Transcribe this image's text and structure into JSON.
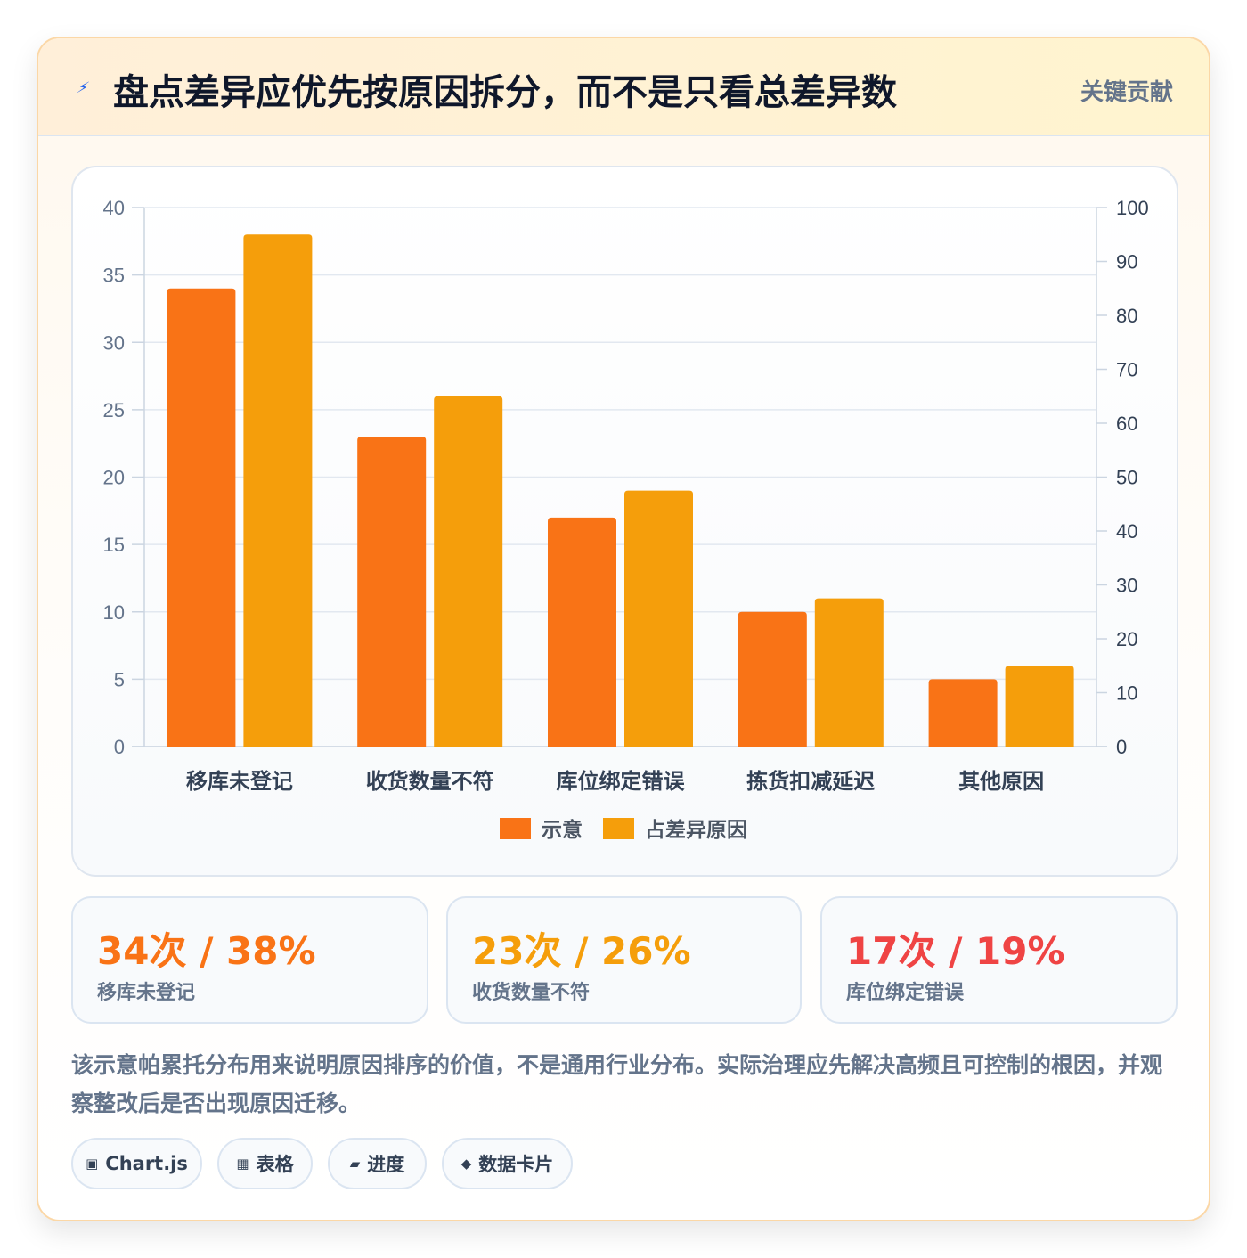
{
  "header": {
    "icon": "lightning-icon",
    "title": "盘点差异应优先按原因拆分，而不是只看总差异数",
    "tag": "关键贡献"
  },
  "chart_data": {
    "type": "bar",
    "categories": [
      "移库未登记",
      "收货数量不符",
      "库位绑定错误",
      "拣货扣减延迟",
      "其他原因"
    ],
    "series": [
      {
        "name": "示意",
        "values": [
          34,
          23,
          17,
          10,
          5
        ],
        "axis": "left",
        "color": "#f97316"
      },
      {
        "name": "占差异原因",
        "values": [
          38,
          26,
          19,
          11,
          6
        ],
        "axis": "left",
        "color": "#f59e0b"
      }
    ],
    "ylim_left": [
      0,
      40
    ],
    "yticks_left": [
      0,
      5,
      10,
      15,
      20,
      25,
      30,
      35,
      40
    ],
    "ylim_right": [
      0,
      100
    ],
    "yticks_right": [
      0,
      10,
      20,
      30,
      40,
      50,
      60,
      70,
      80,
      90,
      100
    ],
    "grid": true,
    "legend": "bottom-center"
  },
  "stats": [
    {
      "value": "34次 / 38%",
      "label": "移库未登记",
      "color": "#f97316"
    },
    {
      "value": "23次 / 26%",
      "label": "收货数量不符",
      "color": "#f59e0b"
    },
    {
      "value": "17次 / 19%",
      "label": "库位绑定错误",
      "color": "#ef4444"
    }
  ],
  "note": "该示意帕累托分布用来说明原因排序的价值，不是通用行业分布。实际治理应先解决高频且可控制的根因，并观察整改后是否出现原因迁移。",
  "pills": [
    {
      "icon": "chart-icon",
      "glyph": "▣",
      "label": "Chart.js"
    },
    {
      "icon": "table-icon",
      "glyph": "▦",
      "label": "表格"
    },
    {
      "icon": "progress-icon",
      "glyph": "▰",
      "label": "进度"
    },
    {
      "icon": "diamond-icon",
      "glyph": "◆",
      "label": "数据卡片"
    }
  ]
}
